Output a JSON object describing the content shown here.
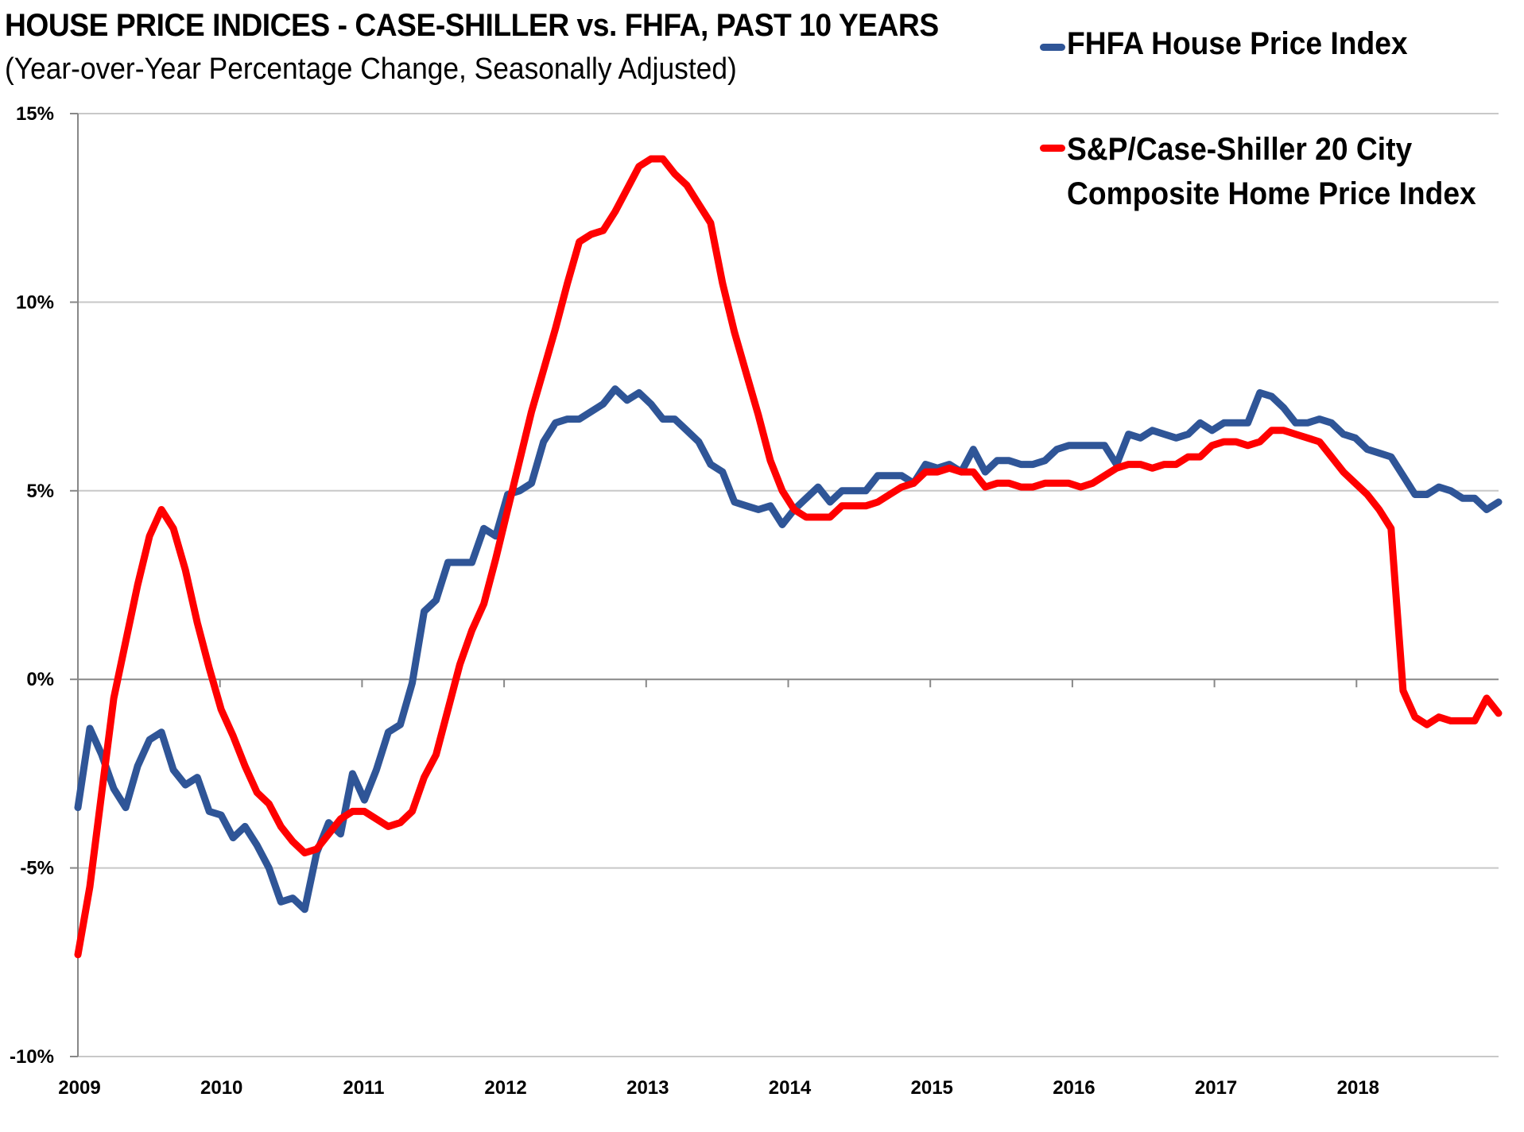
{
  "chart_data": {
    "type": "line",
    "title": "HOUSE PRICE INDICES - CASE-SHILLER vs. FHFA, PAST 10 YEARS",
    "subtitle": "(Year-over-Year Percentage Change, Seasonally Adjusted)",
    "xlabel": "",
    "ylabel": "",
    "ylim": [
      -10,
      15
    ],
    "yticks": [
      15,
      10,
      5,
      0,
      -5,
      -10
    ],
    "ytick_labels": [
      "15%",
      "10%",
      "5%",
      "0%",
      "-5%",
      "-10%"
    ],
    "xlim": [
      2009,
      2019
    ],
    "xtick_labels": [
      "2009",
      "2010",
      "2011",
      "2012",
      "2013",
      "2014",
      "2015",
      "2016",
      "2017",
      "2018"
    ],
    "grid": "horizontal",
    "legend_position": "top-right",
    "frequency": "monthly",
    "x_start": "2009-01",
    "series": [
      {
        "name": "FHFA House Price Index",
        "color": "#2f5597",
        "values": [
          -3.4,
          -1.3,
          -2.0,
          -2.9,
          -3.4,
          -2.3,
          -1.6,
          -1.4,
          -2.4,
          -2.8,
          -2.6,
          -3.5,
          -3.6,
          -4.2,
          -3.9,
          -4.4,
          -5.0,
          -5.9,
          -5.8,
          -6.1,
          -4.6,
          -3.8,
          -4.1,
          -2.5,
          -3.2,
          -2.4,
          -1.4,
          -1.2,
          -0.1,
          1.8,
          2.1,
          3.1,
          3.1,
          3.1,
          4.0,
          3.8,
          4.9,
          5.0,
          5.2,
          6.3,
          6.8,
          6.9,
          6.9,
          7.1,
          7.3,
          7.7,
          7.4,
          7.6,
          7.3,
          6.9,
          6.9,
          6.6,
          6.3,
          5.7,
          5.5,
          4.7,
          4.6,
          4.5,
          4.6,
          4.1,
          4.5,
          4.8,
          5.1,
          4.7,
          5.0,
          5.0,
          5.0,
          5.4,
          5.4,
          5.4,
          5.2,
          5.7,
          5.6,
          5.7,
          5.5,
          6.1,
          5.5,
          5.8,
          5.8,
          5.7,
          5.7,
          5.8,
          6.1,
          6.2,
          6.2,
          6.2,
          6.2,
          5.7,
          6.5,
          6.4,
          6.6,
          6.5,
          6.4,
          6.5,
          6.8,
          6.6,
          6.8,
          6.8,
          6.8,
          7.6,
          7.5,
          7.2,
          6.8,
          6.8,
          6.9,
          6.8,
          6.5,
          6.4,
          6.1,
          6.0,
          5.9,
          5.4,
          4.9,
          4.9,
          5.1,
          5.0,
          4.8,
          4.8,
          4.5,
          4.7
        ]
      },
      {
        "name": "S&P/Case-Shiller 20 City Composite Home Price Index",
        "color": "#ff0000",
        "values": [
          -7.3,
          -5.5,
          -3.0,
          -0.5,
          1.0,
          2.5,
          3.8,
          4.5,
          4.0,
          2.9,
          1.5,
          0.3,
          -0.8,
          -1.5,
          -2.3,
          -3.0,
          -3.3,
          -3.9,
          -4.3,
          -4.6,
          -4.5,
          -4.1,
          -3.7,
          -3.5,
          -3.5,
          -3.7,
          -3.9,
          -3.8,
          -3.5,
          -2.6,
          -2.0,
          -0.8,
          0.4,
          1.3,
          2.0,
          3.2,
          4.5,
          5.8,
          7.1,
          8.2,
          9.3,
          10.5,
          11.6,
          11.8,
          11.9,
          12.4,
          13.0,
          13.6,
          13.8,
          13.8,
          13.4,
          13.1,
          12.6,
          12.1,
          10.5,
          9.2,
          8.1,
          7.0,
          5.8,
          5.0,
          4.5,
          4.3,
          4.3,
          4.3,
          4.6,
          4.6,
          4.6,
          4.7,
          4.9,
          5.1,
          5.2,
          5.5,
          5.5,
          5.6,
          5.5,
          5.5,
          5.1,
          5.2,
          5.2,
          5.1,
          5.1,
          5.2,
          5.2,
          5.2,
          5.1,
          5.2,
          5.4,
          5.6,
          5.7,
          5.7,
          5.6,
          5.7,
          5.7,
          5.9,
          5.9,
          6.2,
          6.3,
          6.3,
          6.2,
          6.3,
          6.6,
          6.6,
          6.5,
          6.4,
          6.3,
          5.9,
          5.5,
          5.2,
          4.9,
          4.5,
          4.0,
          -0.3,
          -1.0,
          -1.2,
          -1.0,
          -1.1,
          -1.1,
          -1.1,
          -0.5,
          -0.9
        ]
      }
    ]
  },
  "legend": {
    "fhfa_label": "FHFA House Price Index",
    "cs_label_line1": "S&P/Case-Shiller 20 City",
    "cs_label_line2": "Composite Home Price Index"
  }
}
